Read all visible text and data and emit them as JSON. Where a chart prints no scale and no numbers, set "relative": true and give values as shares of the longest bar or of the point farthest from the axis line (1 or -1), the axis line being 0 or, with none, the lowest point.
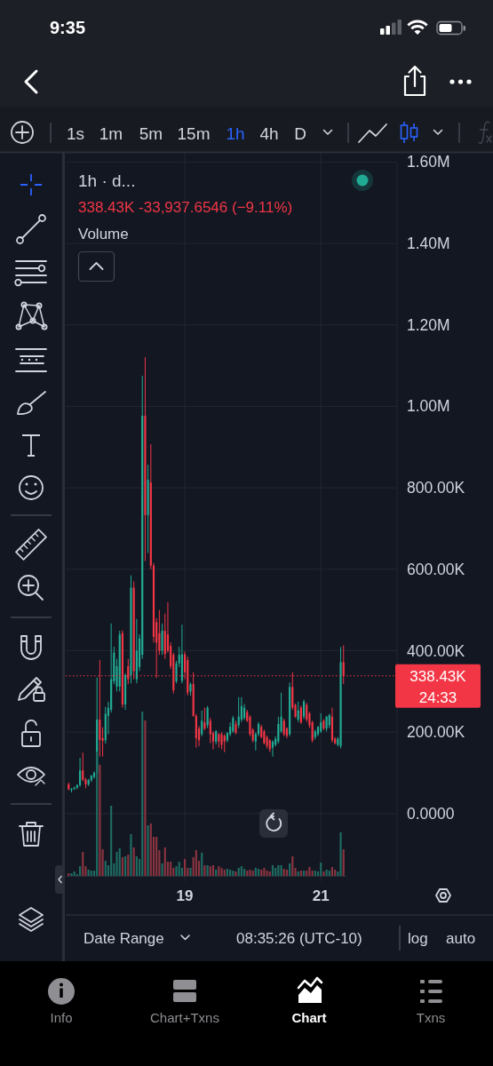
{
  "chart_data": [
    {
      "type": "candlestick",
      "title": "1h · d...",
      "subtitle": "338.43K -33,937.6546 (−9.11%)",
      "categories": [
        null,
        null,
        null,
        null,
        null,
        null,
        null,
        null,
        null,
        null,
        null,
        null,
        null,
        null,
        null,
        null,
        null,
        null,
        null,
        null,
        null,
        null,
        null,
        null,
        null,
        null,
        null,
        null,
        null,
        null,
        null,
        null,
        null,
        null,
        null,
        null,
        null,
        null,
        null,
        null,
        null,
        "19",
        null,
        null,
        null,
        null,
        null,
        null,
        null,
        null,
        null,
        null,
        null,
        null,
        null,
        null,
        null,
        null,
        null,
        null,
        null,
        null,
        null,
        null,
        null,
        null,
        null,
        null,
        null,
        null,
        null,
        null,
        null,
        null,
        null,
        null,
        null,
        null,
        null,
        null,
        null,
        null,
        null,
        null,
        null,
        null,
        null,
        null,
        null,
        "21",
        null,
        null,
        null,
        null,
        null,
        null,
        null,
        null
      ],
      "ohlc": [
        [
          72000,
          76000,
          57000,
          60000
        ],
        [
          58000,
          63000,
          52000,
          61000
        ],
        [
          61000,
          66000,
          58000,
          64000
        ],
        [
          64000,
          72000,
          60000,
          70000
        ],
        [
          70000,
          137000,
          66000,
          106000
        ],
        [
          106000,
          150000,
          80000,
          83000
        ],
        [
          84000,
          88000,
          62000,
          72000
        ],
        [
          72000,
          85000,
          68000,
          82000
        ],
        [
          82000,
          95000,
          78000,
          93000
        ],
        [
          90000,
          104000,
          86000,
          100000
        ],
        [
          100000,
          334000,
          95000,
          231000
        ],
        [
          231000,
          377000,
          140000,
          181000
        ],
        [
          185000,
          212000,
          140000,
          179000
        ],
        [
          180000,
          262000,
          172000,
          245000
        ],
        [
          240000,
          275000,
          195000,
          260000
        ],
        [
          255000,
          467000,
          248000,
          330000
        ],
        [
          325000,
          410000,
          318000,
          395000
        ],
        [
          312000,
          380000,
          300000,
          362000
        ],
        [
          312000,
          449000,
          300000,
          440000
        ],
        [
          443000,
          450000,
          260000,
          268000
        ],
        [
          268000,
          345000,
          255000,
          340000
        ],
        [
          362000,
          380000,
          318000,
          330000
        ],
        [
          340000,
          585000,
          320000,
          555000
        ],
        [
          555000,
          570000,
          330000,
          350000
        ],
        [
          330000,
          478000,
          320000,
          400000
        ],
        [
          360000,
          440000,
          350000,
          430000
        ],
        [
          390000,
          1075000,
          380000,
          977000
        ],
        [
          977000,
          1121000,
          620000,
          733000
        ],
        [
          733000,
          857000,
          640000,
          820000
        ],
        [
          813000,
          907000,
          600000,
          609000
        ],
        [
          609000,
          615000,
          420000,
          434000
        ],
        [
          470000,
          480000,
          333000,
          420000
        ],
        [
          443000,
          500000,
          390000,
          400000
        ],
        [
          400000,
          467000,
          390000,
          449000
        ],
        [
          449000,
          491000,
          380000,
          392000
        ],
        [
          440000,
          519000,
          395000,
          400000
        ],
        [
          412000,
          420000,
          355000,
          362000
        ],
        [
          390000,
          395000,
          295000,
          303000
        ],
        [
          325000,
          375000,
          320000,
          369000
        ],
        [
          369000,
          410000,
          360000,
          390000
        ],
        [
          326000,
          464000,
          320000,
          391000
        ],
        [
          391000,
          398000,
          330000,
          347000
        ],
        [
          377000,
          385000,
          290000,
          297000
        ],
        [
          300000,
          322000,
          290000,
          318000
        ],
        [
          318000,
          347000,
          238000,
          240000
        ],
        [
          240000,
          245000,
          162000,
          185000
        ],
        [
          209000,
          215000,
          166000,
          180000
        ],
        [
          195000,
          253000,
          190000,
          228000
        ],
        [
          224000,
          260000,
          205000,
          209000
        ],
        [
          217000,
          264000,
          210000,
          260000
        ],
        [
          228000,
          235000,
          173000,
          195000
        ],
        [
          198000,
          202000,
          158000,
          177000
        ],
        [
          177000,
          205000,
          170000,
          202000
        ],
        [
          195000,
          198000,
          162000,
          177000
        ],
        [
          195000,
          200000,
          158000,
          169000
        ],
        [
          191000,
          195000,
          151000,
          177000
        ],
        [
          180000,
          200000,
          175000,
          198000
        ],
        [
          195000,
          224000,
          190000,
          213000
        ],
        [
          202000,
          240000,
          198000,
          235000
        ],
        [
          220000,
          228000,
          195000,
          198000
        ],
        [
          217000,
          286000,
          210000,
          238000
        ],
        [
          231000,
          286000,
          225000,
          264000
        ],
        [
          235000,
          269000,
          230000,
          260000
        ],
        [
          249000,
          255000,
          225000,
          228000
        ],
        [
          238000,
          242000,
          190000,
          195000
        ],
        [
          206000,
          210000,
          175000,
          180000
        ],
        [
          177000,
          200000,
          155000,
          195000
        ],
        [
          195000,
          225000,
          190000,
          220000
        ],
        [
          213000,
          218000,
          185000,
          188000
        ],
        [
          202000,
          206000,
          170000,
          173000
        ],
        [
          188000,
          192000,
          160000,
          166000
        ],
        [
          180000,
          183000,
          151000,
          158000
        ],
        [
          162000,
          180000,
          140000,
          177000
        ],
        [
          169000,
          190000,
          165000,
          184000
        ],
        [
          177000,
          238000,
          172000,
          220000
        ],
        [
          202000,
          297000,
          198000,
          238000
        ],
        [
          228000,
          233000,
          190000,
          195000
        ],
        [
          209000,
          212000,
          185000,
          191000
        ],
        [
          195000,
          322000,
          190000,
          311000
        ],
        [
          311000,
          347000,
          255000,
          260000
        ],
        [
          267000,
          270000,
          235000,
          238000
        ],
        [
          231000,
          275000,
          225000,
          253000
        ],
        [
          260000,
          265000,
          220000,
          224000
        ],
        [
          238000,
          280000,
          232000,
          275000
        ],
        [
          267000,
          272000,
          225000,
          231000
        ],
        [
          246000,
          250000,
          210000,
          217000
        ],
        [
          224000,
          228000,
          175000,
          180000
        ],
        [
          188000,
          206000,
          182000,
          202000
        ],
        [
          195000,
          215000,
          190000,
          213000
        ],
        [
          202000,
          246000,
          198000,
          224000
        ],
        [
          228000,
          232000,
          205000,
          209000
        ],
        [
          209000,
          240000,
          202000,
          238000
        ],
        [
          217000,
          245000,
          210000,
          242000
        ],
        [
          238000,
          260000,
          175000,
          180000
        ],
        [
          184000,
          188000,
          170000,
          173000
        ],
        [
          169000,
          188000,
          165000,
          184000
        ],
        [
          166000,
          409000,
          160000,
          372000
        ],
        [
          372000,
          413000,
          318000,
          338430
        ]
      ],
      "colors": [
        "#f23645",
        "#22ab94",
        "#22ab94",
        "#22ab94",
        "#22ab94",
        "#f23645",
        "#f23645",
        "#22ab94",
        "#22ab94",
        "#22ab94",
        "#22ab94",
        "#f23645",
        "#f23645",
        "#22ab94",
        "#22ab94",
        "#22ab94",
        "#22ab94",
        "#22ab94",
        "#22ab94",
        "#f23645",
        "#22ab94",
        "#f23645",
        "#22ab94",
        "#f23645",
        "#22ab94",
        "#22ab94",
        "#22ab94",
        "#f23645",
        "#22ab94",
        "#f23645",
        "#f23645",
        "#f23645",
        "#f23645",
        "#22ab94",
        "#f23645",
        "#f23645",
        "#f23645",
        "#f23645",
        "#22ab94",
        "#22ab94",
        "#22ab94",
        "#f23645",
        "#f23645",
        "#22ab94",
        "#f23645",
        "#f23645",
        "#f23645",
        "#22ab94",
        "#f23645",
        "#22ab94",
        "#f23645",
        "#f23645",
        "#22ab94",
        "#f23645",
        "#f23645",
        "#f23645",
        "#22ab94",
        "#22ab94",
        "#22ab94",
        "#f23645",
        "#22ab94",
        "#22ab94",
        "#22ab94",
        "#f23645",
        "#f23645",
        "#f23645",
        "#22ab94",
        "#22ab94",
        "#f23645",
        "#f23645",
        "#f23645",
        "#f23645",
        "#22ab94",
        "#22ab94",
        "#22ab94",
        "#22ab94",
        "#f23645",
        "#f23645",
        "#22ab94",
        "#f23645",
        "#f23645",
        "#22ab94",
        "#f23645",
        "#22ab94",
        "#f23645",
        "#f23645",
        "#f23645",
        "#22ab94",
        "#22ab94",
        "#22ab94",
        "#f23645",
        "#22ab94",
        "#22ab94",
        "#f23645",
        "#f23645",
        "#22ab94",
        "#22ab94",
        "#f23645"
      ],
      "ylim": [
        -166000,
        1600000
      ],
      "yticks": [
        {
          "value": 0,
          "label": "0.0000"
        },
        {
          "value": 200000,
          "label": "200.00K"
        },
        {
          "value": 400000,
          "label": "400.00K"
        },
        {
          "value": 600000,
          "label": "600.00K"
        },
        {
          "value": 800000,
          "label": "800.00K"
        },
        {
          "value": 1000000,
          "label": "1.00M"
        },
        {
          "value": 1200000,
          "label": "1.20M"
        },
        {
          "value": 1400000,
          "label": "1.40M"
        },
        {
          "value": 1600000,
          "label": "1.60M"
        }
      ],
      "grid": true,
      "ref_lines": [
        {
          "axis": "y",
          "value": 338430,
          "label": "338.43K",
          "color": "#f23645",
          "line_style": "dotted"
        }
      ],
      "annotations": [
        "9:35",
        "1s",
        "1m",
        "5m",
        "15m",
        "1h",
        "4h",
        "D",
        "24:33",
        "Date Range",
        "08:35:26 (UTC-10)",
        "log",
        "auto",
        "Info",
        "Chart+Txns",
        "Chart",
        "Txns"
      ]
    },
    {
      "type": "bar",
      "title": "Volume",
      "relative": true,
      "categories": [
        null,
        null,
        null,
        null,
        null,
        null,
        null,
        null,
        null,
        null,
        null,
        null,
        null,
        null,
        null,
        null,
        null,
        null,
        null,
        null,
        null,
        null,
        null,
        null,
        null,
        null,
        null,
        null,
        null,
        null,
        null,
        null,
        null,
        null,
        null,
        null,
        null,
        null,
        null,
        null,
        null,
        null,
        null,
        null,
        null,
        null,
        null,
        null,
        null,
        null,
        null,
        null,
        null,
        null,
        null,
        null,
        null,
        null,
        null,
        null,
        null,
        null,
        null,
        null,
        null,
        null,
        null,
        null,
        null,
        null,
        null,
        null,
        null,
        null,
        null,
        null,
        null,
        null,
        null,
        null,
        null,
        null,
        null,
        null,
        null,
        null,
        null,
        null,
        null,
        null,
        null,
        null,
        null,
        null,
        null,
        null,
        null,
        null
      ],
      "values": [
        0.016,
        0.016,
        0.027,
        0.011,
        0.059,
        0.146,
        0.059,
        0.038,
        0.032,
        0.032,
        0.757,
        0.676,
        0.162,
        0.092,
        0.065,
        0.427,
        0.076,
        0.146,
        0.168,
        0.114,
        0.119,
        0.13,
        0.254,
        0.173,
        0.119,
        0.103,
        1,
        0.946,
        0.308,
        0.319,
        0.238,
        0.238,
        0.157,
        0.076,
        0.173,
        0.086,
        0.086,
        0.049,
        0.059,
        0.086,
        0.049,
        0.103,
        0.049,
        0.049,
        0.114,
        0.157,
        0.092,
        0.141,
        0.065,
        0.065,
        0.059,
        0.065,
        0.038,
        0.059,
        0.049,
        0.038,
        0.043,
        0.038,
        0.032,
        0.027,
        0.049,
        0.059,
        0.043,
        0.032,
        0.038,
        0.032,
        0.049,
        0.043,
        0.038,
        0.049,
        0.032,
        0.027,
        0.065,
        0.049,
        0.065,
        0.065,
        0.043,
        0.038,
        0.076,
        0.119,
        0.049,
        0.027,
        0.032,
        0.032,
        0.032,
        0.054,
        0.032,
        0.032,
        0.027,
        0.081,
        0.027,
        0.038,
        0.032,
        0.054,
        0.038,
        0.027,
        0.265,
        0.162
      ],
      "colors": [
        "#8a3440",
        "#1e6b62",
        "#1e6b62",
        "#1e6b62",
        "#1e6b62",
        "#8a3440",
        "#8a3440",
        "#1e6b62",
        "#1e6b62",
        "#1e6b62",
        "#1e6b62",
        "#8a3440",
        "#8a3440",
        "#1e6b62",
        "#1e6b62",
        "#1e6b62",
        "#1e6b62",
        "#1e6b62",
        "#1e6b62",
        "#8a3440",
        "#1e6b62",
        "#8a3440",
        "#1e6b62",
        "#8a3440",
        "#1e6b62",
        "#1e6b62",
        "#1e6b62",
        "#8a3440",
        "#1e6b62",
        "#8a3440",
        "#8a3440",
        "#8a3440",
        "#8a3440",
        "#1e6b62",
        "#8a3440",
        "#8a3440",
        "#8a3440",
        "#8a3440",
        "#1e6b62",
        "#1e6b62",
        "#1e6b62",
        "#8a3440",
        "#8a3440",
        "#1e6b62",
        "#8a3440",
        "#8a3440",
        "#8a3440",
        "#1e6b62",
        "#8a3440",
        "#1e6b62",
        "#8a3440",
        "#8a3440",
        "#1e6b62",
        "#8a3440",
        "#8a3440",
        "#8a3440",
        "#1e6b62",
        "#1e6b62",
        "#1e6b62",
        "#8a3440",
        "#1e6b62",
        "#1e6b62",
        "#1e6b62",
        "#8a3440",
        "#8a3440",
        "#8a3440",
        "#1e6b62",
        "#1e6b62",
        "#8a3440",
        "#8a3440",
        "#8a3440",
        "#8a3440",
        "#1e6b62",
        "#1e6b62",
        "#1e6b62",
        "#1e6b62",
        "#8a3440",
        "#8a3440",
        "#1e6b62",
        "#8a3440",
        "#8a3440",
        "#1e6b62",
        "#8a3440",
        "#1e6b62",
        "#8a3440",
        "#8a3440",
        "#8a3440",
        "#1e6b62",
        "#1e6b62",
        "#1e6b62",
        "#8a3440",
        "#1e6b62",
        "#1e6b62",
        "#8a3440",
        "#8a3440",
        "#1e6b62",
        "#1e6b62",
        "#8a3440"
      ]
    }
  ]
}
